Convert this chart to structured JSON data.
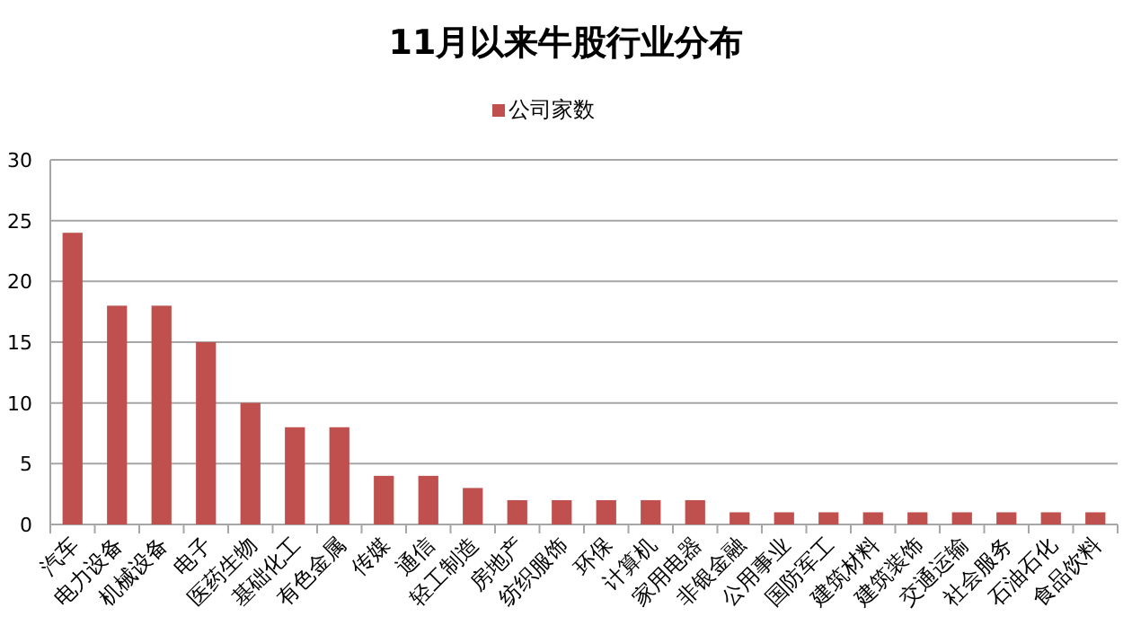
{
  "chart_data": {
    "type": "bar",
    "title": "11月以来牛股行业分布",
    "categories": [
      "汽车",
      "电力设备",
      "机械设备",
      "电子",
      "医药生物",
      "基础化工",
      "有色金属",
      "传媒",
      "通信",
      "轻工制造",
      "房地产",
      "纺织服饰",
      "环保",
      "计算机",
      "家用电器",
      "非银金融",
      "公用事业",
      "国防军工",
      "建筑材料",
      "建筑装饰",
      "交通运输",
      "社会服务",
      "石油石化",
      "食品饮料"
    ],
    "series": [
      {
        "name": "公司家数",
        "color": "#c0504d",
        "values": [
          24,
          18,
          18,
          15,
          10,
          8,
          8,
          4,
          4,
          3,
          2,
          2,
          2,
          2,
          2,
          1,
          1,
          1,
          1,
          1,
          1,
          1,
          1,
          1
        ]
      }
    ],
    "ylim": [
      0,
      30
    ],
    "yticks": [
      0,
      5,
      10,
      15,
      20,
      25,
      30
    ],
    "grid": "y",
    "legend": "top"
  }
}
